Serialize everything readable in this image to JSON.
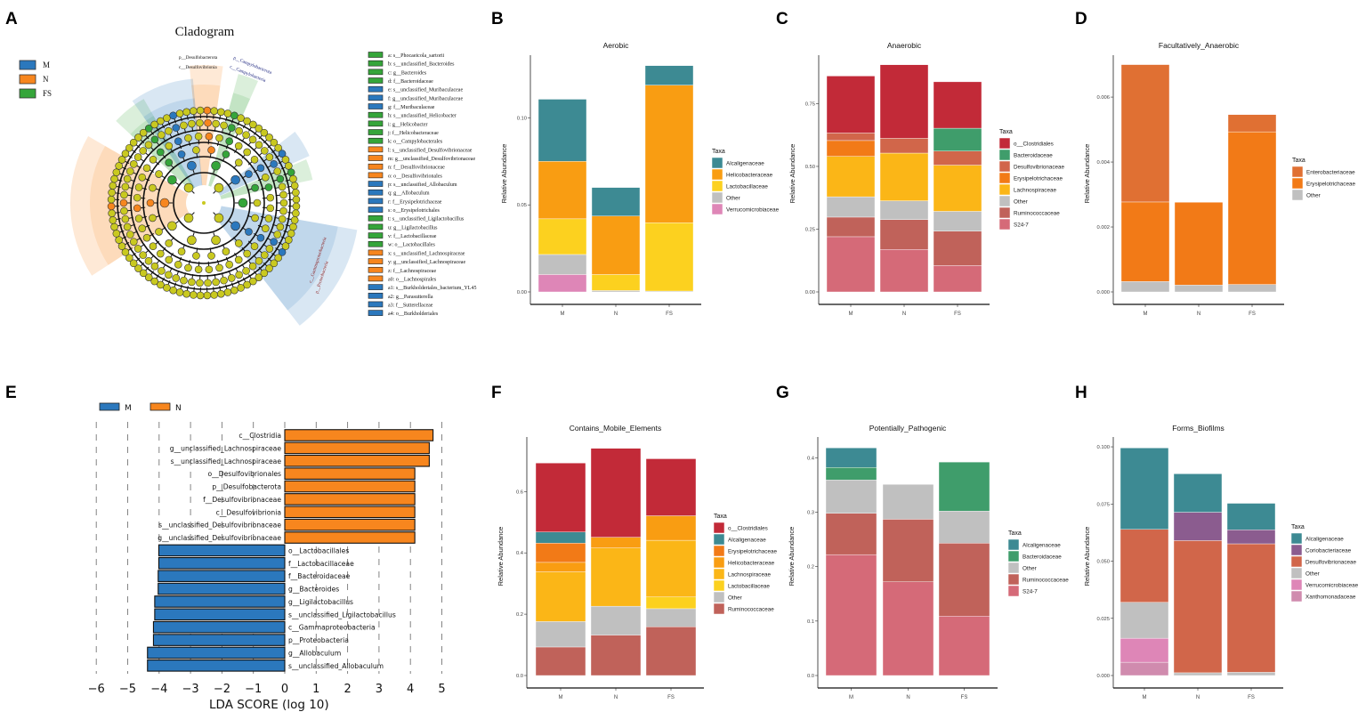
{
  "panel_letters": [
    "A",
    "B",
    "C",
    "D",
    "E",
    "F",
    "G",
    "H"
  ],
  "colors": {
    "M": "#2b78bd",
    "N": "#f7861e",
    "FS": "#35a53a",
    "Alcaligenaceae": "#3d8a93",
    "Helicobacteraceae": "#f99d12",
    "Lactobacillaceae": "#fcd11f",
    "Other": "#c0c0c0",
    "Verrucomicrobiaceae": "#de86b7",
    "o__Clostridiales": "#c22a38",
    "Bacteroidaceae": "#3f9d6b",
    "Desulfovibrionaceae": "#d1664a",
    "Erysipelotrichaceae": "#f27a17",
    "Lachnospiraceae": "#fbb617",
    "Ruminococcaceae": "#c0625a",
    "S24-7": "#d56a78",
    "Enterobacteriaceae": "#e07033",
    "Coriobacteriaceae": "#8b5c8f",
    "Xanthomonadaceae": "#d08bae",
    "node": "#c9c920"
  },
  "cladogram": {
    "title": "Cladogram",
    "groups": [
      "M",
      "N",
      "FS"
    ],
    "clade_labels": [
      "p__Desulfobacterota",
      "c__Desulfovibrionia",
      "p__Campylobacterota",
      "c__Campylobacteria",
      "p__Proteobacteria",
      "c__Gammaproteobacteria"
    ],
    "legend_items": [
      {
        "code": "a",
        "name": "s__Phocaeicola_sartorii",
        "group": "FS"
      },
      {
        "code": "b",
        "name": "s__unclassified_Bacteroides",
        "group": "FS"
      },
      {
        "code": "c",
        "name": "g__Bacteroides",
        "group": "FS"
      },
      {
        "code": "d",
        "name": "f__Bacteroidaceae",
        "group": "FS"
      },
      {
        "code": "e",
        "name": "s__unclassified_Muribaculaceae",
        "group": "M"
      },
      {
        "code": "f",
        "name": "g__unclassified_Muribaculaceae",
        "group": "M"
      },
      {
        "code": "g",
        "name": "f__Muribaculaceae",
        "group": "M"
      },
      {
        "code": "h",
        "name": "s__unclassified_Helicobacter",
        "group": "FS"
      },
      {
        "code": "i",
        "name": "g__Helicobacter",
        "group": "FS"
      },
      {
        "code": "j",
        "name": "f__Helicobacteraceae",
        "group": "FS"
      },
      {
        "code": "k",
        "name": "o__Campylobacterales",
        "group": "FS"
      },
      {
        "code": "l",
        "name": "s__unclassified_Desulfovibrionaceae",
        "group": "N"
      },
      {
        "code": "m",
        "name": "g__unclassified_Desulfovibrionaceae",
        "group": "N"
      },
      {
        "code": "n",
        "name": "f__Desulfovibrionaceae",
        "group": "N"
      },
      {
        "code": "o",
        "name": "o__Desulfovibrionales",
        "group": "N"
      },
      {
        "code": "p",
        "name": "s__unclassified_Allobaculum",
        "group": "M"
      },
      {
        "code": "q",
        "name": "g__Allobaculum",
        "group": "M"
      },
      {
        "code": "r",
        "name": "f__Erysipelotrichaceae",
        "group": "M"
      },
      {
        "code": "s",
        "name": "o__Erysipelotrichales",
        "group": "M"
      },
      {
        "code": "t",
        "name": "s__unclassified_Ligilactobacillus",
        "group": "FS"
      },
      {
        "code": "u",
        "name": "g__Ligilactobacillus",
        "group": "FS"
      },
      {
        "code": "v",
        "name": "f__Lactobacillaceae",
        "group": "FS"
      },
      {
        "code": "w",
        "name": "o__Lactobacillales",
        "group": "FS"
      },
      {
        "code": "x",
        "name": "s__unclassified_Lachnospiraceae",
        "group": "N"
      },
      {
        "code": "y",
        "name": "g__unclassified_Lachnospiraceae",
        "group": "N"
      },
      {
        "code": "z",
        "name": "f__Lachnospiraceae",
        "group": "N"
      },
      {
        "code": "a0",
        "name": "o__Lachnospirales",
        "group": "N"
      },
      {
        "code": "a1",
        "name": "s__Burkholderiales_bacterium_YL45",
        "group": "M"
      },
      {
        "code": "a2",
        "name": "g__Parasutterella",
        "group": "M"
      },
      {
        "code": "a3",
        "name": "f__Sutterellaceae",
        "group": "M"
      },
      {
        "code": "a4",
        "name": "o__Burkholderiales",
        "group": "M"
      }
    ]
  },
  "chart_data": [
    {
      "id": "B",
      "type": "bar",
      "stacked": true,
      "title": "Aerobic",
      "xlabel": "",
      "ylabel": "Relative Abundance",
      "legend_title": "Taxa",
      "legend": "right",
      "categories": [
        "M",
        "N",
        "FS"
      ],
      "ylim": [
        0,
        0.136
      ],
      "yticks": [
        "0.00",
        "0.05",
        "0.10"
      ],
      "ytick_values": [
        0,
        0.05,
        0.1
      ],
      "series": [
        {
          "name": "Alcaligenaceae",
          "values": [
            0.0357,
            0.0164,
            0.0112
          ]
        },
        {
          "name": "Helicobacteraceae",
          "values": [
            0.033,
            0.0336,
            0.0791
          ]
        },
        {
          "name": "Lactobacillaceae",
          "values": [
            0.0205,
            0.0092,
            0.0392
          ]
        },
        {
          "name": "Other",
          "values": [
            0.0115,
            0.0008,
            0.0005
          ]
        },
        {
          "name": "Verrucomicrobiaceae",
          "values": [
            0.01,
            0,
            0
          ]
        }
      ]
    },
    {
      "id": "C",
      "type": "bar",
      "stacked": true,
      "title": "Anaerobic",
      "xlabel": "",
      "ylabel": "Relative Abundance",
      "legend_title": "Taxa",
      "legend": "right",
      "categories": [
        "M",
        "N",
        "FS"
      ],
      "ylim": [
        0,
        0.943
      ],
      "yticks": [
        "0.00",
        "0.25",
        "0.50",
        "0.75"
      ],
      "ytick_values": [
        0,
        0.25,
        0.5,
        0.75
      ],
      "series": [
        {
          "name": "o__Clostridiales",
          "values": [
            0.227,
            0.293,
            0.185
          ]
        },
        {
          "name": "Bacteroidaceae",
          "values": [
            0,
            0,
            0.091
          ]
        },
        {
          "name": "Desulfovibrionaceae",
          "values": [
            0.03,
            0.059,
            0.056
          ]
        },
        {
          "name": "Erysipelotrichaceae",
          "values": [
            0.063,
            0,
            0
          ]
        },
        {
          "name": "Lachnospiraceae",
          "values": [
            0.161,
            0.19,
            0.184
          ]
        },
        {
          "name": "Other",
          "values": [
            0.081,
            0.075,
            0.079
          ]
        },
        {
          "name": "Ruminococcaceae",
          "values": [
            0.078,
            0.119,
            0.137
          ]
        },
        {
          "name": "S24-7",
          "values": [
            0.22,
            0.169,
            0.105
          ]
        }
      ]
    },
    {
      "id": "D",
      "type": "bar",
      "stacked": true,
      "title": "Facultatively_Anaerobic",
      "xlabel": "",
      "ylabel": "Relative Abundance",
      "legend_title": "Taxa",
      "legend": "right",
      "categories": [
        "M",
        "N",
        "FS"
      ],
      "ylim": [
        0,
        0.00729
      ],
      "yticks": [
        "0.000",
        "0.002",
        "0.004",
        "0.006"
      ],
      "ytick_values": [
        0,
        0.002,
        0.004,
        0.006
      ],
      "series": [
        {
          "name": "Enterobacteriaceae",
          "values": [
            0.00423,
            0,
            0.00053
          ]
        },
        {
          "name": "Erysipelotrichaceae",
          "values": [
            0.00245,
            0.00255,
            0.0047
          ]
        },
        {
          "name": "Other",
          "values": [
            0.00032,
            0.00021,
            0.00023
          ]
        }
      ]
    },
    {
      "id": "F",
      "type": "bar",
      "stacked": true,
      "title": "Contains_Mobile_Elements",
      "xlabel": "",
      "ylabel": "Relative Abundance",
      "legend_title": "Taxa",
      "legend": "right",
      "categories": [
        "M",
        "N",
        "FS"
      ],
      "ylim": [
        0,
        0.778
      ],
      "yticks": [
        "0.0",
        "0.2",
        "0.4",
        "0.6"
      ],
      "ytick_values": [
        0,
        0.2,
        0.4,
        0.6
      ],
      "series": [
        {
          "name": "o__Clostridiales",
          "values": [
            0.225,
            0.29,
            0.186
          ]
        },
        {
          "name": "Alcaligenaceae",
          "values": [
            0.036,
            0,
            0
          ]
        },
        {
          "name": "Erysipelotrichaceae",
          "values": [
            0.063,
            0,
            0
          ]
        },
        {
          "name": "Helicobacteraceae",
          "values": [
            0.031,
            0.035,
            0.08
          ]
        },
        {
          "name": "Lachnospiraceae",
          "values": [
            0.162,
            0.19,
            0.185
          ]
        },
        {
          "name": "Lactobacillaceae",
          "values": [
            0,
            0,
            0.038
          ]
        },
        {
          "name": "Other",
          "values": [
            0.083,
            0.094,
            0.059
          ]
        },
        {
          "name": "Ruminococcaceae",
          "values": [
            0.093,
            0.132,
            0.159
          ]
        }
      ]
    },
    {
      "id": "G",
      "type": "bar",
      "stacked": true,
      "title": "Potentially_Pathogenic",
      "xlabel": "",
      "ylabel": "Relative Abundance",
      "legend_title": "Taxa",
      "legend": "right",
      "categories": [
        "M",
        "N",
        "FS"
      ],
      "ylim": [
        0,
        0.438
      ],
      "yticks": [
        "0.0",
        "0.1",
        "0.2",
        "0.3",
        "0.4"
      ],
      "ytick_values": [
        0,
        0.1,
        0.2,
        0.3,
        0.4
      ],
      "series": [
        {
          "name": "Alcaligenaceae",
          "values": [
            0.036,
            0,
            0
          ]
        },
        {
          "name": "Bacteroidaceae",
          "values": [
            0.023,
            0,
            0.09
          ]
        },
        {
          "name": "Other",
          "values": [
            0.061,
            0.064,
            0.059
          ]
        },
        {
          "name": "Ruminococcaceae",
          "values": [
            0.076,
            0.115,
            0.134
          ]
        },
        {
          "name": "S24-7",
          "values": [
            0.222,
            0.172,
            0.109
          ]
        }
      ]
    },
    {
      "id": "H",
      "type": "bar",
      "stacked": true,
      "title": "Forms_Biofilms",
      "xlabel": "",
      "ylabel": "Relative Abundance",
      "legend_title": "Taxa",
      "legend": "right",
      "categories": [
        "M",
        "N",
        "FS"
      ],
      "ylim": [
        0,
        0.1043
      ],
      "yticks": [
        "0.000",
        "0.025",
        "0.050",
        "0.075",
        "0.100"
      ],
      "ytick_values": [
        0,
        0.025,
        0.05,
        0.075,
        0.1
      ],
      "series": [
        {
          "name": "Alcaligenaceae",
          "values": [
            0.0356,
            0.0168,
            0.0116
          ]
        },
        {
          "name": "Coriobacteriaceae",
          "values": [
            0,
            0.0124,
            0.0061
          ]
        },
        {
          "name": "Desulfovibrionaceae",
          "values": [
            0.0319,
            0.0578,
            0.0562
          ]
        },
        {
          "name": "Other",
          "values": [
            0.0157,
            0.0012,
            0.0014
          ]
        },
        {
          "name": "Verrucomicrobiaceae",
          "values": [
            0.0105,
            0,
            0
          ]
        },
        {
          "name": "Xanthomonadaceae",
          "values": [
            0.0058,
            0,
            0
          ]
        }
      ]
    },
    {
      "id": "E",
      "type": "bar",
      "orientation": "horizontal",
      "title": "",
      "xlabel": "LDA SCORE (log 10)",
      "ylabel": "",
      "legend": "top-left",
      "legend_entries": [
        "M",
        "N"
      ],
      "xlim": [
        -6,
        5
      ],
      "xticks": [
        "−6",
        "−5",
        "−4",
        "−3",
        "−2",
        "−1",
        "0",
        "1",
        "2",
        "3",
        "4",
        "5"
      ],
      "xtick_values": [
        -6,
        -5,
        -4,
        -3,
        -2,
        -1,
        0,
        1,
        2,
        3,
        4,
        5
      ],
      "bars": [
        {
          "label": "c__Clostridia",
          "value": 4.72,
          "group": "N"
        },
        {
          "label": "g__unclassified_Lachnospiraceae",
          "value": 4.6,
          "group": "N"
        },
        {
          "label": "s__unclassified_Lachnospiraceae",
          "value": 4.6,
          "group": "N"
        },
        {
          "label": "o__Desulfovibrionales",
          "value": 4.14,
          "group": "N"
        },
        {
          "label": "p__Desulfobacterota",
          "value": 4.14,
          "group": "N"
        },
        {
          "label": "f__Desulfovibrionaceae",
          "value": 4.14,
          "group": "N"
        },
        {
          "label": "c__Desulfovibrionia",
          "value": 4.14,
          "group": "N"
        },
        {
          "label": "s__unclassified_Desulfovibrionaceae",
          "value": 4.14,
          "group": "N"
        },
        {
          "label": "g__unclassified_Desulfovibrionaceae",
          "value": 4.14,
          "group": "N"
        },
        {
          "label": "o__Lactobacillales",
          "value": -4.01,
          "group": "M"
        },
        {
          "label": "f__Lactobacillaceae",
          "value": -4.01,
          "group": "M"
        },
        {
          "label": "f__Bacteroidaceae",
          "value": -4.03,
          "group": "M"
        },
        {
          "label": "g__Bacteroides",
          "value": -4.03,
          "group": "M"
        },
        {
          "label": "g__Ligilactobacillus",
          "value": -4.14,
          "group": "M"
        },
        {
          "label": "s__unclassified_Ligilactobacillus",
          "value": -4.14,
          "group": "M"
        },
        {
          "label": "c__Gammaproteobacteria",
          "value": -4.18,
          "group": "M"
        },
        {
          "label": "p__Proteobacteria",
          "value": -4.18,
          "group": "M"
        },
        {
          "label": "g__Allobaculum",
          "value": -4.37,
          "group": "M"
        },
        {
          "label": "s__unclassified_Allobaculum",
          "value": -4.37,
          "group": "M"
        }
      ]
    }
  ]
}
